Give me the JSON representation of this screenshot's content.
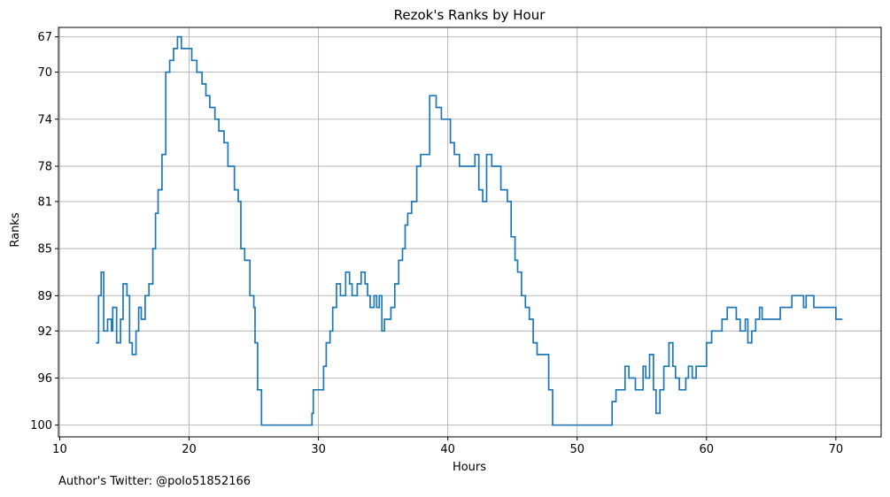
{
  "chart_data": {
    "type": "line",
    "title": "Rezok's Ranks by Hour",
    "xlabel": "Hours",
    "ylabel": "Ranks",
    "step": true,
    "y_inverted": true,
    "grid": true,
    "xlim": [
      9.9,
      73.5
    ],
    "ylim": [
      101.0,
      66.2
    ],
    "x_ticks": [
      10,
      20,
      30,
      40,
      50,
      60,
      70
    ],
    "y_ticks": [
      67,
      70,
      74,
      78,
      81,
      85,
      89,
      92,
      96,
      100
    ],
    "line_color": "#1f77b4",
    "series": [
      {
        "points": [
          [
            12.8,
            93
          ],
          [
            13.0,
            89
          ],
          [
            13.2,
            87
          ],
          [
            13.4,
            92
          ],
          [
            13.7,
            91
          ],
          [
            14.0,
            92
          ],
          [
            14.1,
            90
          ],
          [
            14.4,
            93
          ],
          [
            14.7,
            91
          ],
          [
            14.9,
            88
          ],
          [
            15.2,
            89
          ],
          [
            15.4,
            93
          ],
          [
            15.6,
            94
          ],
          [
            15.9,
            92
          ],
          [
            16.1,
            90
          ],
          [
            16.3,
            91
          ],
          [
            16.6,
            89
          ],
          [
            16.9,
            88
          ],
          [
            17.2,
            85
          ],
          [
            17.4,
            82
          ],
          [
            17.6,
            80
          ],
          [
            17.9,
            77
          ],
          [
            18.2,
            70
          ],
          [
            18.5,
            69
          ],
          [
            18.8,
            68
          ],
          [
            19.1,
            67
          ],
          [
            19.4,
            68
          ],
          [
            20.2,
            69
          ],
          [
            20.6,
            70
          ],
          [
            21.0,
            71
          ],
          [
            21.3,
            72
          ],
          [
            21.6,
            73
          ],
          [
            22.0,
            74
          ],
          [
            22.3,
            75
          ],
          [
            22.7,
            76
          ],
          [
            23.0,
            78
          ],
          [
            23.5,
            80
          ],
          [
            23.8,
            81
          ],
          [
            24.0,
            85
          ],
          [
            24.3,
            86
          ],
          [
            24.7,
            89
          ],
          [
            25.0,
            90
          ],
          [
            25.1,
            93
          ],
          [
            25.3,
            97
          ],
          [
            25.6,
            100
          ],
          [
            29.5,
            99
          ],
          [
            29.6,
            97
          ],
          [
            30.4,
            95
          ],
          [
            30.6,
            93
          ],
          [
            30.9,
            92
          ],
          [
            31.1,
            90
          ],
          [
            31.4,
            88
          ],
          [
            31.7,
            89
          ],
          [
            32.1,
            87
          ],
          [
            32.4,
            88
          ],
          [
            32.6,
            89
          ],
          [
            33.0,
            88
          ],
          [
            33.3,
            87
          ],
          [
            33.6,
            88
          ],
          [
            33.8,
            89
          ],
          [
            34.0,
            90
          ],
          [
            34.3,
            89
          ],
          [
            34.5,
            90
          ],
          [
            34.7,
            89
          ],
          [
            34.9,
            92
          ],
          [
            35.1,
            91
          ],
          [
            35.6,
            90
          ],
          [
            35.9,
            88
          ],
          [
            36.2,
            86
          ],
          [
            36.5,
            85
          ],
          [
            36.7,
            83
          ],
          [
            36.9,
            82
          ],
          [
            37.2,
            81
          ],
          [
            37.6,
            78
          ],
          [
            37.9,
            77
          ],
          [
            38.6,
            72
          ],
          [
            39.1,
            73
          ],
          [
            39.5,
            74
          ],
          [
            40.2,
            76
          ],
          [
            40.5,
            77
          ],
          [
            40.9,
            78
          ],
          [
            42.1,
            77
          ],
          [
            42.4,
            80
          ],
          [
            42.7,
            81
          ],
          [
            43.0,
            77
          ],
          [
            43.4,
            78
          ],
          [
            44.1,
            80
          ],
          [
            44.6,
            81
          ],
          [
            44.9,
            84
          ],
          [
            45.2,
            86
          ],
          [
            45.4,
            87
          ],
          [
            45.7,
            89
          ],
          [
            46.0,
            90
          ],
          [
            46.3,
            91
          ],
          [
            46.6,
            93
          ],
          [
            46.9,
            94
          ],
          [
            47.8,
            97
          ],
          [
            48.1,
            100
          ],
          [
            52.7,
            98
          ],
          [
            53.0,
            97
          ],
          [
            53.7,
            95
          ],
          [
            54.0,
            96
          ],
          [
            54.5,
            97
          ],
          [
            55.1,
            95
          ],
          [
            55.3,
            96
          ],
          [
            55.6,
            94
          ],
          [
            55.9,
            97
          ],
          [
            56.1,
            99
          ],
          [
            56.4,
            97
          ],
          [
            56.7,
            95
          ],
          [
            57.1,
            93
          ],
          [
            57.4,
            95
          ],
          [
            57.6,
            96
          ],
          [
            57.9,
            97
          ],
          [
            58.4,
            96
          ],
          [
            58.6,
            95
          ],
          [
            58.9,
            96
          ],
          [
            59.2,
            95
          ],
          [
            60.0,
            93
          ],
          [
            60.4,
            92
          ],
          [
            61.2,
            91
          ],
          [
            61.6,
            90
          ],
          [
            62.3,
            91
          ],
          [
            62.6,
            92
          ],
          [
            63.0,
            91
          ],
          [
            63.2,
            93
          ],
          [
            63.5,
            92
          ],
          [
            63.8,
            91
          ],
          [
            64.1,
            90
          ],
          [
            64.3,
            91
          ],
          [
            65.7,
            90
          ],
          [
            66.6,
            89
          ],
          [
            67.5,
            90
          ],
          [
            67.7,
            89
          ],
          [
            68.3,
            90
          ],
          [
            70.0,
            91
          ],
          [
            70.5,
            91
          ]
        ]
      }
    ]
  },
  "credit": "Author's Twitter: @polo51852166"
}
